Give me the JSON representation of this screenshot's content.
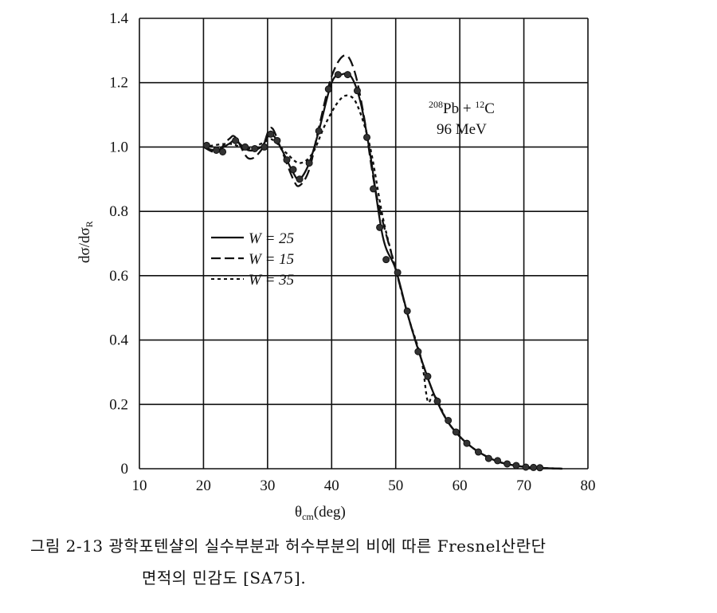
{
  "chart_data": {
    "type": "line",
    "xlabel": "θcm(deg)",
    "xlabel_main": "θ",
    "xlabel_sub": "cm",
    "xlabel_unit": "(deg)",
    "ylabel": "dσ/dσR",
    "ylabel_main": "dσ/dσ",
    "ylabel_sub": "R",
    "xlim": [
      10,
      80
    ],
    "ylim": [
      0,
      1.4
    ],
    "xticks": [
      "10",
      "20",
      "30",
      "40",
      "50",
      "60",
      "70",
      "80"
    ],
    "yticks": [
      "0",
      "0.2",
      "0.4",
      "0.6",
      "0.8",
      "1.0",
      "1.2",
      "1.4"
    ],
    "grid": true,
    "annotation": {
      "line1_a": "208",
      "line1_b": "Pb + ",
      "line1_c": "12",
      "line1_d": "C",
      "line2": "96 MeV"
    },
    "legend_position": "center-left",
    "series": [
      {
        "name": "W = 25",
        "style": "solid",
        "x": [
          20,
          22,
          24,
          25,
          27,
          29,
          30.5,
          32,
          34,
          35,
          36.5,
          38,
          40,
          41.5,
          43,
          44.5,
          46,
          48,
          50,
          52,
          54,
          56,
          58,
          60,
          62,
          64,
          66,
          68,
          70,
          72,
          76
        ],
        "y": [
          1.0,
          0.99,
          1.01,
          1.02,
          0.99,
          1.0,
          1.04,
          1.0,
          0.92,
          0.9,
          0.95,
          1.05,
          1.2,
          1.225,
          1.22,
          1.14,
          0.98,
          0.72,
          0.62,
          0.47,
          0.34,
          0.23,
          0.15,
          0.1,
          0.065,
          0.04,
          0.022,
          0.012,
          0.006,
          0.003,
          0.0
        ]
      },
      {
        "name": "W = 15",
        "style": "dashed",
        "x": [
          20,
          22,
          24,
          25,
          27,
          29,
          30.5,
          32,
          34,
          35,
          36.5,
          38,
          40,
          42,
          43.5,
          45,
          47,
          50,
          52,
          54,
          56,
          58,
          60,
          62,
          64,
          66,
          68,
          70,
          72,
          76
        ],
        "y": [
          1.0,
          0.985,
          1.025,
          1.03,
          0.965,
          0.99,
          1.06,
          1.0,
          0.9,
          0.88,
          0.93,
          1.06,
          1.22,
          1.285,
          1.24,
          1.1,
          0.85,
          0.62,
          0.47,
          0.34,
          0.23,
          0.15,
          0.1,
          0.065,
          0.04,
          0.022,
          0.012,
          0.006,
          0.003,
          0.0
        ]
      },
      {
        "name": "W = 35",
        "style": "dotted",
        "x": [
          20,
          24,
          27,
          30,
          31,
          33,
          35,
          37,
          39,
          41,
          42.5,
          44,
          46,
          48,
          50,
          52,
          54,
          55,
          56,
          58,
          60,
          62,
          64,
          66,
          68,
          70,
          72,
          76
        ],
        "y": [
          1.0,
          1.01,
          0.995,
          1.02,
          1.02,
          0.98,
          0.95,
          0.98,
          1.07,
          1.14,
          1.16,
          1.13,
          1.0,
          0.78,
          0.62,
          0.47,
          0.34,
          0.21,
          0.23,
          0.15,
          0.1,
          0.065,
          0.04,
          0.022,
          0.012,
          0.006,
          0.003,
          0.0
        ]
      }
    ],
    "points": {
      "x": [
        20.5,
        22,
        23,
        25,
        26.5,
        28,
        29.5,
        30.5,
        31.5,
        33,
        34,
        35,
        36.5,
        38,
        39.5,
        41,
        42.5,
        44,
        45.5,
        46.5,
        47.5,
        48.5,
        50.3,
        51.8,
        53.5,
        55,
        56.5,
        58.2,
        59.4,
        61.1,
        62.9,
        64.5,
        65.9,
        67.4,
        68.8,
        70.3,
        71.5,
        72.5
      ],
      "y": [
        1.005,
        0.99,
        0.985,
        1.02,
        1.0,
        0.995,
        1.0,
        1.04,
        1.02,
        0.96,
        0.93,
        0.9,
        0.95,
        1.05,
        1.18,
        1.225,
        1.225,
        1.175,
        1.03,
        0.87,
        0.75,
        0.65,
        0.61,
        0.49,
        0.364,
        0.287,
        0.21,
        0.15,
        0.114,
        0.079,
        0.052,
        0.032,
        0.025,
        0.015,
        0.01,
        0.005,
        0.004,
        0.003
      ]
    }
  },
  "caption": {
    "line1": "그림 2-13 광학포텐샬의 실수부분과 허수부분의 비에 따른 Fresnel산란단",
    "line2": "면적의 민감도 [SA75]."
  }
}
